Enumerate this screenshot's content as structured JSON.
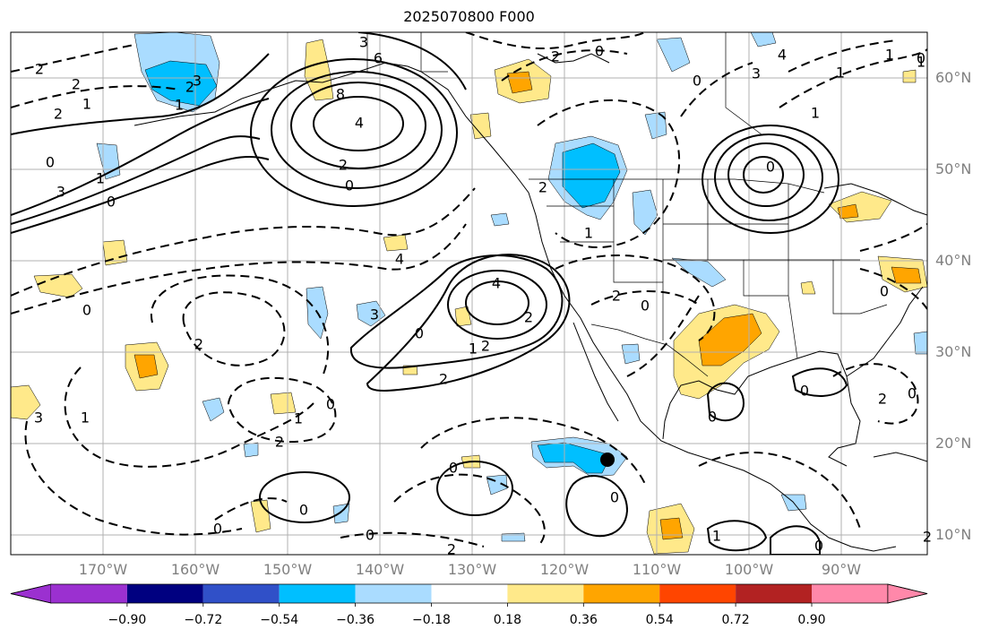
{
  "title": "2025070800 F000",
  "lat_labels": [
    "60°N",
    "50°N",
    "40°N",
    "30°N",
    "20°N",
    "10°N"
  ],
  "lon_labels": [
    "170°W",
    "160°W",
    "150°W",
    "140°W",
    "130°W",
    "120°W",
    "110°W",
    "100°W",
    "90°W"
  ],
  "contour_labels": [
    "2",
    "3",
    "6",
    "8",
    "4",
    "2",
    "0",
    "2",
    "1",
    "0",
    "3",
    "2",
    "1",
    "0",
    "1",
    "2",
    "3",
    "4",
    "1",
    "0",
    "2",
    "2",
    "4",
    "3",
    "2",
    "2",
    "0",
    "0",
    "2",
    "1",
    "2",
    "0",
    "0",
    "0",
    "2",
    "0",
    "0",
    "1",
    "0",
    "1",
    "3",
    "0",
    "1",
    "4",
    "0",
    "0",
    "0",
    "2",
    "2",
    "3",
    "1",
    "1",
    "1",
    "1",
    "0",
    "0",
    "2",
    "0",
    "0",
    "0",
    "2"
  ],
  "colorbar": {
    "labels": [
      "−0.90",
      "−0.72",
      "−0.54",
      "−0.36",
      "−0.18",
      "0.18",
      "0.36",
      "0.54",
      "0.72",
      "0.90"
    ],
    "colors": [
      "#9b30d0",
      "#000080",
      "#3050c8",
      "#00bfff",
      "#aadcff",
      "#ffffff",
      "#ffe98a",
      "#ffa500",
      "#ff4500",
      "#b22222",
      "#ff88aa"
    ]
  },
  "shading_colors": {
    "neg_light": "#aadcff",
    "neg_medium": "#00bfff",
    "neg_strong": "#3050c8",
    "pos_light": "#ffe98a",
    "pos_medium": "#ffa500",
    "pos_strong": "#ff4500"
  },
  "marker_color": "#000000"
}
